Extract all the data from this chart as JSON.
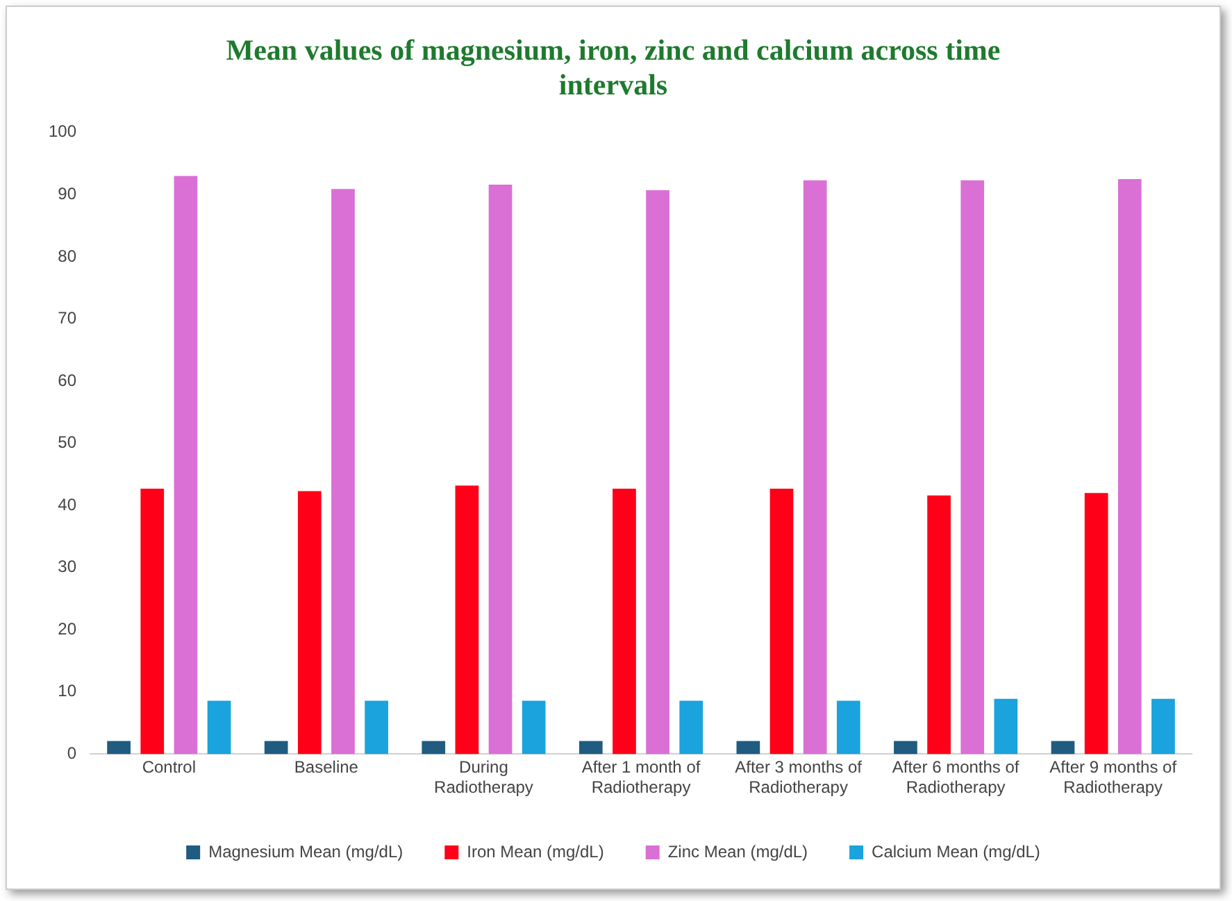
{
  "chart_data": {
    "type": "bar",
    "title": "Mean values of magnesium, iron, zinc and calcium across time intervals",
    "categories": [
      "Control",
      "Baseline",
      "During Radiotherapy",
      "After 1 month of Radiotherapy",
      "After 3 months of Radiotherapy",
      "After 6 months of Radiotherapy",
      "After 9 months of Radiotherapy"
    ],
    "series": [
      {
        "name": "Magnesium Mean (mg/dL)",
        "color": "#1f5c80",
        "values": [
          2.1,
          2.1,
          2.1,
          2.1,
          2.1,
          2.1,
          2.1
        ]
      },
      {
        "name": "Iron Mean (mg/dL)",
        "color": "#ff0019",
        "values": [
          42.7,
          42.3,
          43.2,
          42.7,
          42.7,
          41.6,
          42.0
        ]
      },
      {
        "name": "Zinc Mean (mg/dL)",
        "color": "#da70d6",
        "values": [
          93.0,
          90.9,
          91.6,
          90.7,
          92.3,
          92.3,
          92.5
        ]
      },
      {
        "name": "Calcium Mean (mg/dL)",
        "color": "#1aa3dc",
        "values": [
          8.6,
          8.6,
          8.6,
          8.6,
          8.6,
          8.9,
          8.9
        ]
      }
    ],
    "ylim": [
      0,
      100
    ],
    "yticks": [
      0,
      10,
      20,
      30,
      40,
      50,
      60,
      70,
      80,
      90,
      100
    ],
    "grid": false,
    "legend": "bottom"
  }
}
